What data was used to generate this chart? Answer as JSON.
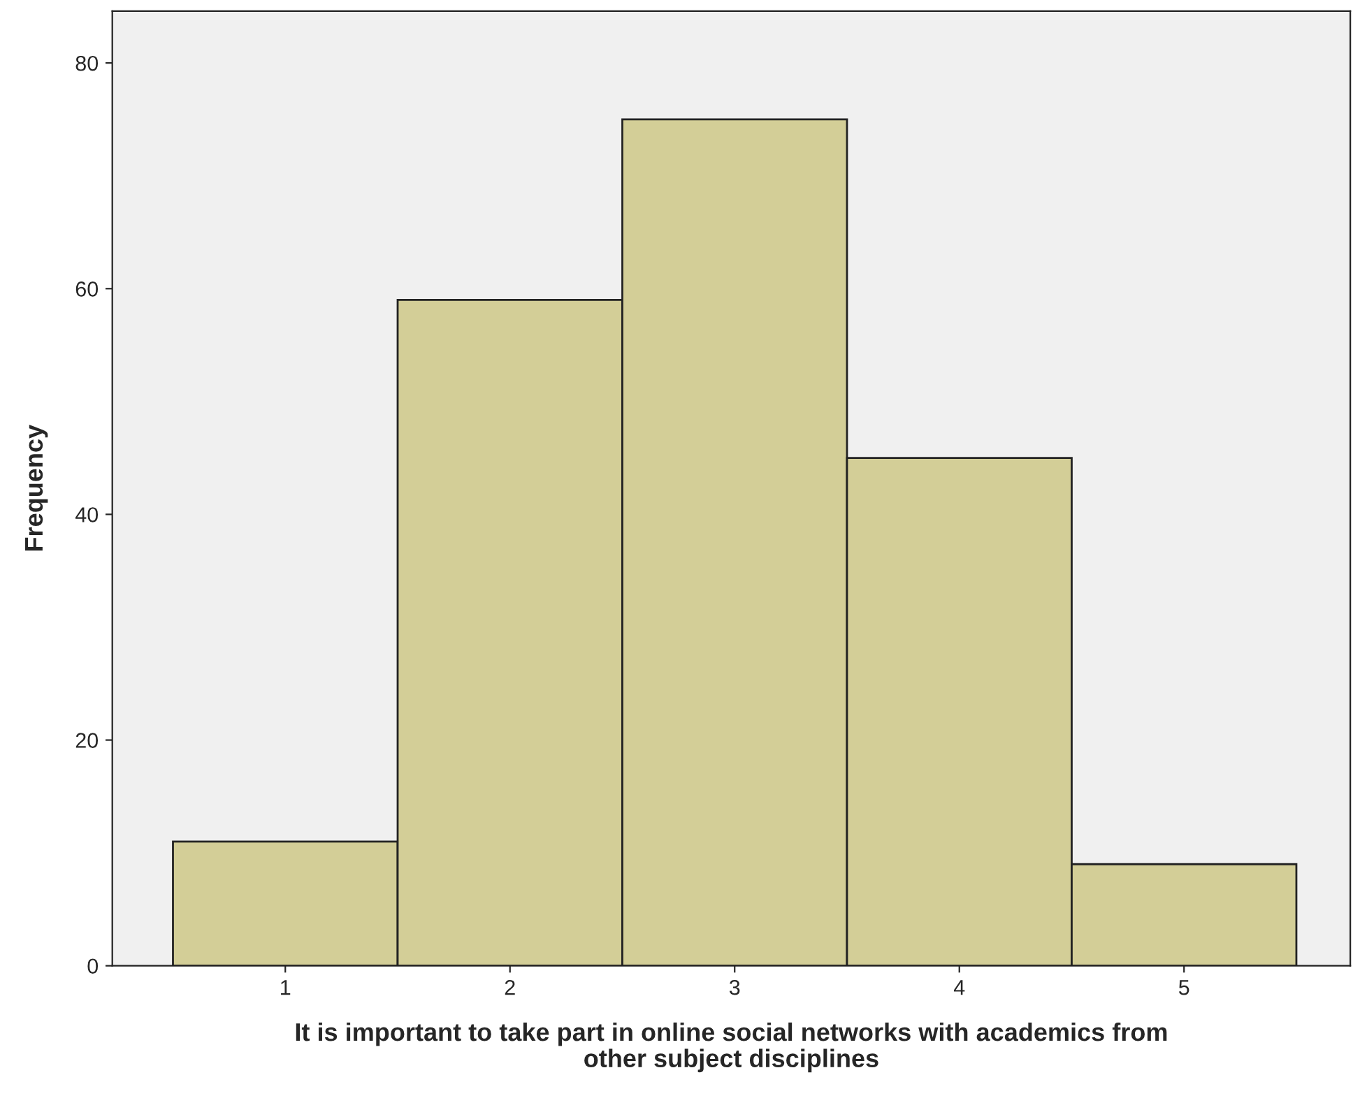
{
  "chart_data": {
    "type": "histogram",
    "xlabel": "It is important to take part in online social networks with academics from\nother subject disciplines",
    "ylabel": "Frequency",
    "bins": [
      0.5,
      1.5,
      2.5,
      3.5,
      4.5,
      5.5
    ],
    "values": [
      11,
      59,
      75,
      45,
      9
    ],
    "color": "#d3ce97",
    "xlim": [
      0.23,
      5.74
    ],
    "xticks": [
      1,
      2,
      3,
      4,
      5
    ],
    "ylim": [
      0,
      84.6
    ],
    "yticks": [
      0,
      20,
      40,
      60,
      80
    ],
    "grid": false
  }
}
